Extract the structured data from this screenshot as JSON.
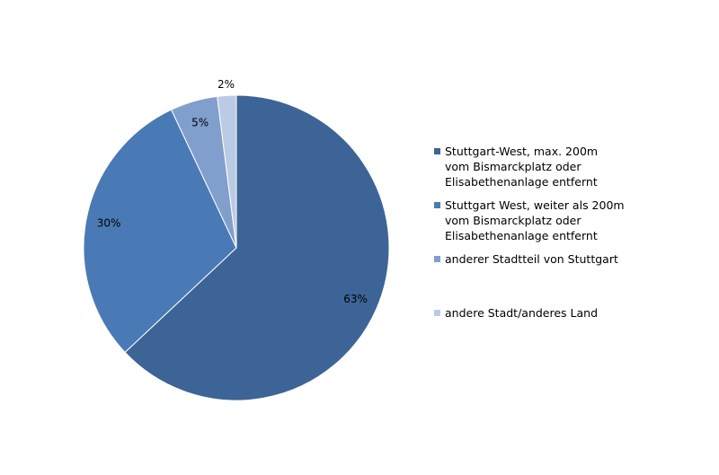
{
  "chart_data": {
    "type": "pie",
    "categories": [
      "Stuttgart-West, max. 200m vom Bismarckplatz oder Elisabethenanlage entfernt",
      "Stuttgart West, weiter als 200m vom Bismarckplatz oder Elisabethenanlage entfernt",
      "anderer Stadtteil von Stuttgart",
      "andere Stadt/anderes Land"
    ],
    "values": [
      63,
      30,
      5,
      2
    ],
    "value_labels": [
      "63%",
      "30%",
      "5%",
      "2%"
    ],
    "colors": [
      "#3d6496",
      "#4a7ab5",
      "#819fcd",
      "#bccbe4"
    ],
    "legend": "right"
  }
}
